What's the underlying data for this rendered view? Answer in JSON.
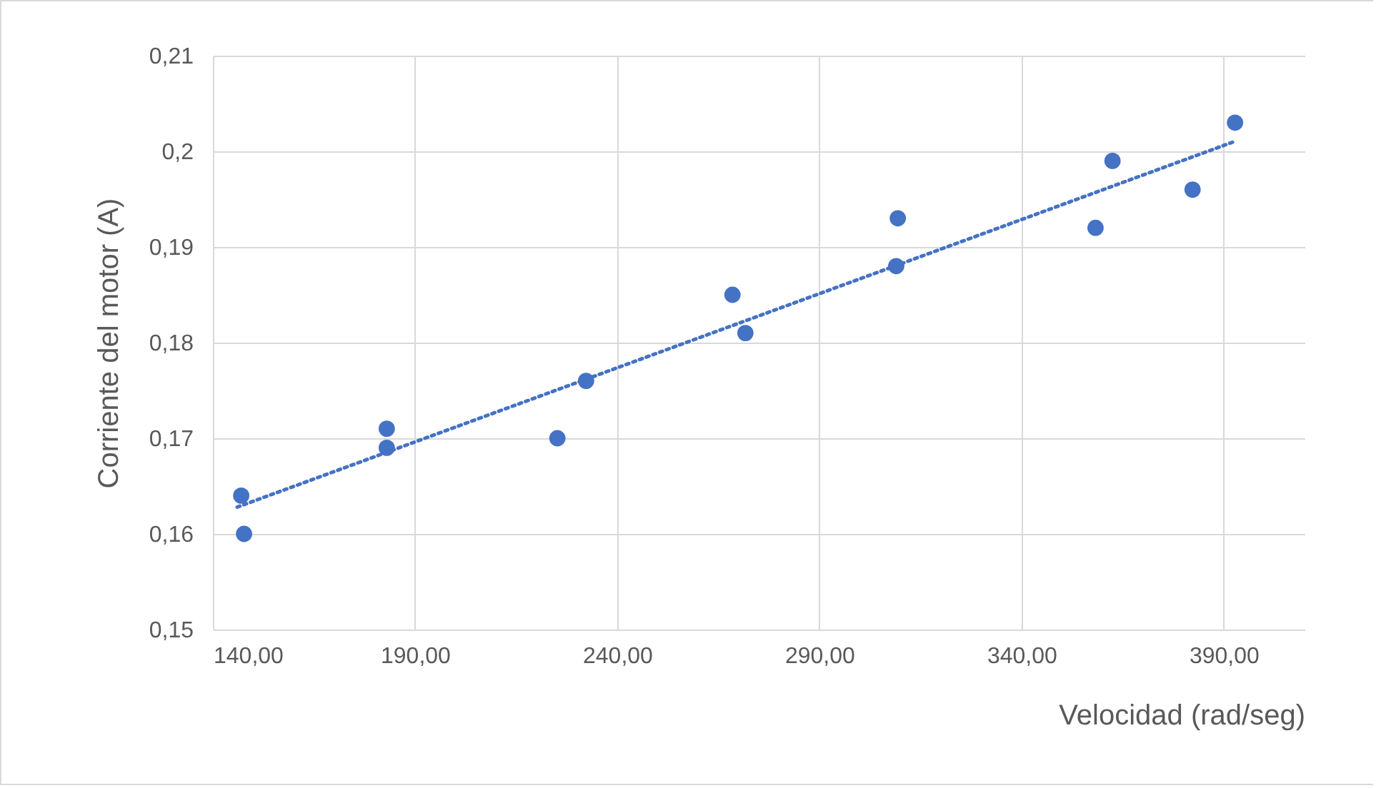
{
  "chart_data": {
    "type": "scatter",
    "xlabel": "Velocidad (rad/seg)",
    "ylabel": "Corriente del motor (A)",
    "xlim": [
      140,
      410
    ],
    "ylim": [
      0.15,
      0.21
    ],
    "xticks": [
      {
        "value": 140,
        "label": "140,00"
      },
      {
        "value": 190,
        "label": "190,00"
      },
      {
        "value": 240,
        "label": "240,00"
      },
      {
        "value": 290,
        "label": "290,00"
      },
      {
        "value": 340,
        "label": "340,00"
      },
      {
        "value": 390,
        "label": "390,00"
      }
    ],
    "yticks": [
      {
        "value": 0.15,
        "label": "0,15"
      },
      {
        "value": 0.16,
        "label": "0,16"
      },
      {
        "value": 0.17,
        "label": "0,17"
      },
      {
        "value": 0.18,
        "label": "0,18"
      },
      {
        "value": 0.19,
        "label": "0,19"
      },
      {
        "value": 0.2,
        "label": "0,2"
      },
      {
        "value": 0.21,
        "label": "0,21"
      }
    ],
    "grid": true,
    "series": [
      {
        "color": "#4472c4",
        "marker": "circle",
        "x": [
          147.0,
          147.7,
          183.0,
          183.0,
          225.2,
          232.3,
          268.5,
          271.7,
          309.4,
          309.0,
          358.3,
          362.5,
          382.3,
          392.8
        ],
        "values": [
          0.164,
          0.16,
          0.171,
          0.169,
          0.17,
          0.176,
          0.185,
          0.181,
          0.193,
          0.188,
          0.192,
          0.199,
          0.196,
          0.203
        ]
      },
      {
        "type": "line",
        "color": "#4472c4",
        "line_style": "dotted",
        "marker": "none",
        "x": [
          146,
          392.5
        ],
        "values": [
          0.1628,
          0.201
        ]
      }
    ]
  }
}
